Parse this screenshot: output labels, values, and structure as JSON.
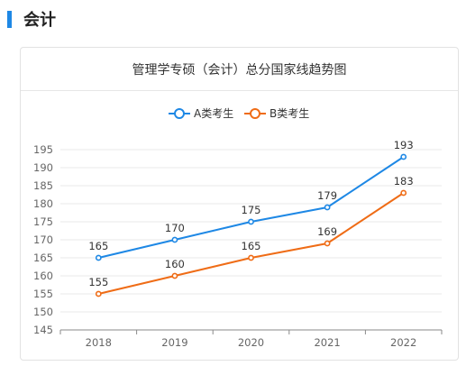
{
  "section": {
    "title": "会计"
  },
  "chart_data": {
    "type": "line",
    "title": "管理学专硕（会计）总分国家线趋势图",
    "categories": [
      "2018",
      "2019",
      "2020",
      "2021",
      "2022"
    ],
    "series": [
      {
        "name": "A类考生",
        "values": [
          165,
          170,
          175,
          179,
          193
        ],
        "color": "#1e88e5"
      },
      {
        "name": "B类考生",
        "values": [
          155,
          160,
          165,
          169,
          183
        ],
        "color": "#ef6c16"
      }
    ],
    "ylim": [
      145,
      195
    ],
    "yticks": [
      145,
      150,
      155,
      160,
      165,
      170,
      175,
      180,
      185,
      190,
      195
    ],
    "xlabel": "",
    "ylabel": "",
    "legend_position": "top-center",
    "grid": true
  }
}
